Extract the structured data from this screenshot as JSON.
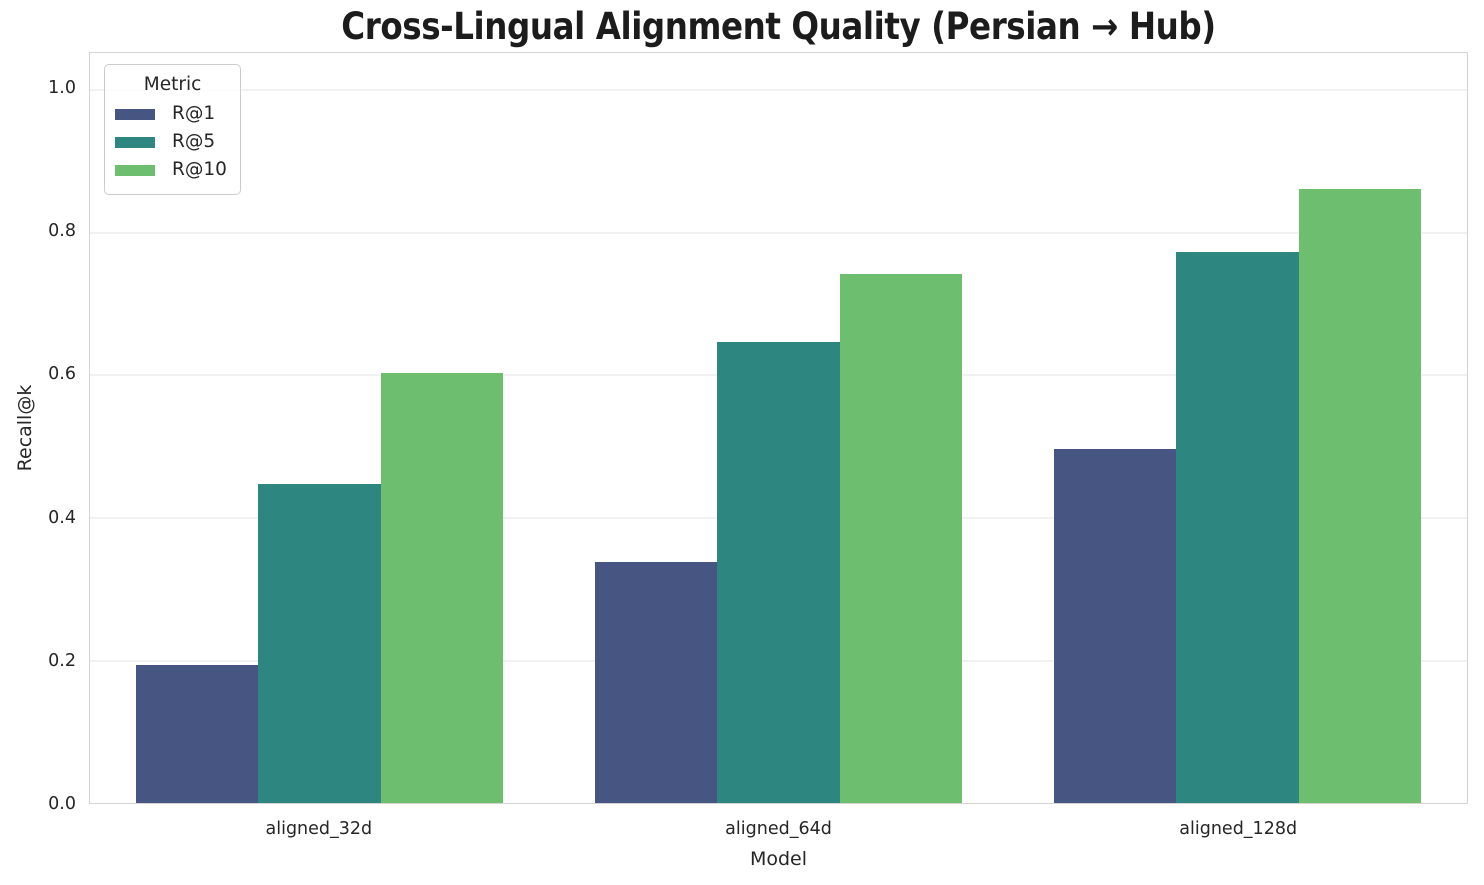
{
  "chart_data": {
    "type": "bar",
    "title": "Cross-Lingual Alignment Quality (Persian → Hub)",
    "xlabel": "Model",
    "ylabel": "Recall@k",
    "categories": [
      "aligned_32d",
      "aligned_64d",
      "aligned_128d"
    ],
    "series": [
      {
        "name": "R@1",
        "color": "#465582",
        "values": [
          0.193,
          0.338,
          0.496
        ]
      },
      {
        "name": "R@5",
        "color": "#2e8680",
        "values": [
          0.446,
          0.646,
          0.772
        ]
      },
      {
        "name": "R@10",
        "color": "#6dbf6f",
        "values": [
          0.602,
          0.741,
          0.859
        ]
      }
    ],
    "ylim": [
      0,
      1.05
    ],
    "yticks": [
      0.0,
      0.2,
      0.4,
      0.6,
      0.8,
      1.0
    ],
    "ytick_labels": [
      "0.0",
      "0.2",
      "0.4",
      "0.6",
      "0.8",
      "1.0"
    ],
    "grid": "horizontal",
    "group_width_fraction": 0.8,
    "legend": {
      "title": "Metric",
      "position": "upper-left"
    }
  },
  "colors": {
    "background": "#ffffff",
    "text": "#262626",
    "title": "#1c1c1c",
    "grid": "#f1f1f1",
    "spine": "#d4d4d4",
    "legend_border": "#cccccc"
  }
}
